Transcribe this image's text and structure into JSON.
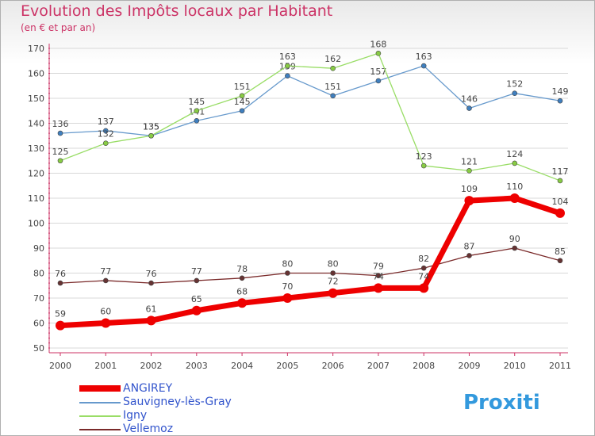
{
  "header": {
    "title": "Evolution des Impôts locaux par Habitant",
    "subtitle": "(en € et par an)"
  },
  "logo": {
    "text": "Proxiti"
  },
  "chart_data": {
    "type": "line",
    "title": "Evolution des Impôts locaux par Habitant",
    "subtitle": "(en € et par an)",
    "xlabel": "",
    "ylabel": "",
    "categories": [
      "2000",
      "2001",
      "2002",
      "2003",
      "2004",
      "2005",
      "2006",
      "2007",
      "2008",
      "2009",
      "2010",
      "2011"
    ],
    "ylim": [
      50,
      170
    ],
    "yticks": [
      50,
      60,
      70,
      80,
      90,
      100,
      110,
      120,
      130,
      140,
      150,
      160,
      170
    ],
    "grid": "horizontal",
    "legend_position": "bottom-left",
    "series": [
      {
        "name": "Sauvigney-lès-Gray",
        "color": "#6699cc",
        "marker": "#3f7fbf",
        "width": 1.3,
        "values": [
          136,
          137,
          135,
          141,
          145,
          159,
          151,
          157,
          163,
          146,
          152,
          149
        ]
      },
      {
        "name": "Igny",
        "color": "#99dd66",
        "marker": "#88cc44",
        "width": 1.3,
        "values": [
          125,
          132,
          135,
          145,
          151,
          163,
          162,
          168,
          123,
          121,
          124,
          117
        ]
      },
      {
        "name": "Vellemoz",
        "color": "#7a2a2a",
        "marker": "#663333",
        "width": 1.3,
        "values": [
          76,
          77,
          76,
          77,
          78,
          80,
          80,
          79,
          82,
          87,
          90,
          85
        ]
      },
      {
        "name": "ANGIREY",
        "color": "#ee0000",
        "marker": "#ee0000",
        "width": 7,
        "values": [
          59,
          60,
          61,
          65,
          68,
          70,
          72,
          74,
          74,
          109,
          110,
          104
        ]
      }
    ],
    "legend_order": [
      "ANGIREY",
      "Sauvigney-lès-Gray",
      "Igny",
      "Vellemoz"
    ]
  }
}
